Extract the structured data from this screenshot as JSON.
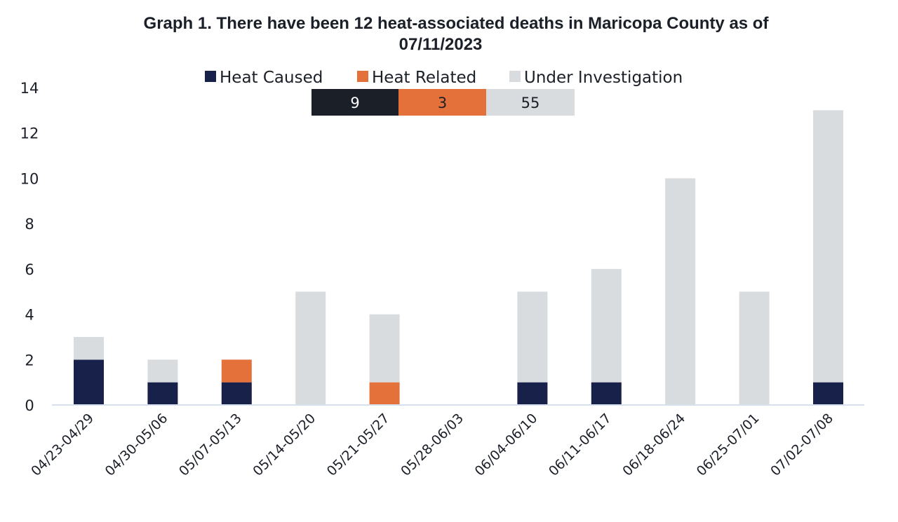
{
  "chart_data": {
    "type": "bar",
    "stacked": true,
    "title_line1": "Graph 1. There have been 12 heat-associated deaths in Maricopa County as of",
    "title_line2": "07/11/2023",
    "categories": [
      "04/23-04/29",
      "04/30-05/06",
      "05/07-05/13",
      "05/14-05/20",
      "05/21-05/27",
      "05/28-06/03",
      "06/04-06/10",
      "06/11-06/17",
      "06/18-06/24",
      "06/25-07/01",
      "07/02-07/08"
    ],
    "series": [
      {
        "name": "Heat Caused",
        "color": "#18214a",
        "values": [
          2,
          1,
          1,
          0,
          0,
          0,
          1,
          1,
          0,
          0,
          1
        ]
      },
      {
        "name": "Heat Related",
        "color": "#e4703a",
        "values": [
          0,
          0,
          1,
          0,
          1,
          0,
          0,
          0,
          0,
          0,
          0
        ]
      },
      {
        "name": "Under Investigation",
        "color": "#d9dcdf",
        "values": [
          1,
          1,
          0,
          5,
          3,
          0,
          4,
          5,
          10,
          5,
          12
        ]
      }
    ],
    "summary": [
      {
        "label": "9",
        "value": 9,
        "color": "#1a1f28",
        "text_color": "#ffffff"
      },
      {
        "label": "3",
        "value": 3,
        "color": "#e4703a",
        "text_color": "#1a1f28"
      },
      {
        "label": "55",
        "value": 55,
        "color": "#d9dcdf",
        "text_color": "#1a1f28"
      }
    ],
    "yticks": [
      "0",
      "2",
      "4",
      "6",
      "8",
      "10",
      "12",
      "14"
    ],
    "ylim": [
      0,
      14
    ],
    "legend_position": "top",
    "grid": false,
    "axis_color": "#d6e0ee"
  }
}
